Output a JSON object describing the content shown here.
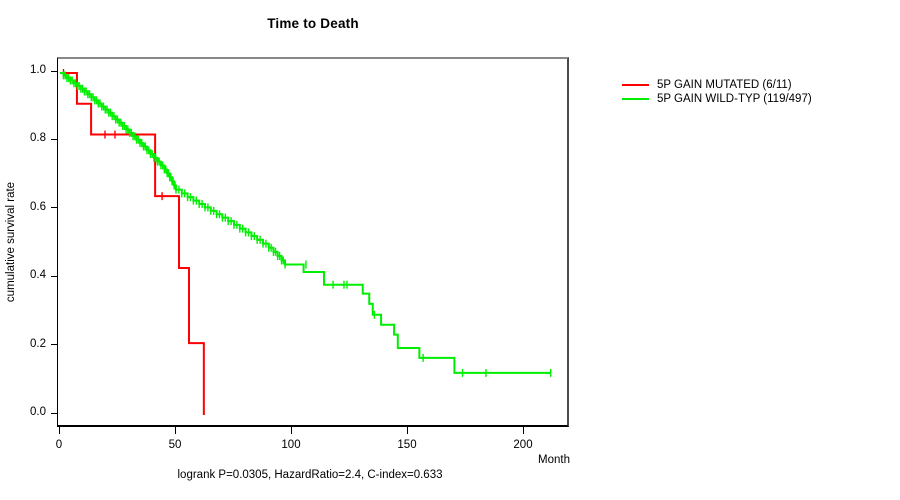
{
  "chart_data": {
    "type": "line",
    "subtype": "kaplan-meier-step",
    "title": "Time to Death",
    "xlabel": "Month",
    "ylabel": "cumulative survival rate",
    "footnote": "logrank P=0.0305, HazardRatio=2.4, C-index=0.633",
    "xlim": [
      0,
      220
    ],
    "ylim": [
      0.0,
      1.0
    ],
    "x_ticks": [
      0,
      50,
      100,
      150,
      200
    ],
    "y_ticks": [
      "1.0",
      "0.8",
      "0.6",
      "0.4",
      "0.2",
      "0.0"
    ],
    "grid": false,
    "legend_position": "right",
    "frame_color_top": "#888888",
    "axis_color": "#000000",
    "series": [
      {
        "name": "5P GAIN MUTATED (6/11)",
        "color": "#ff0000",
        "end_month": 62,
        "steps": [
          [
            0,
            1.0
          ],
          [
            7.3,
            0.91
          ],
          [
            13.4,
            0.82
          ],
          [
            41,
            0.64
          ],
          [
            51.3,
            0.43
          ],
          [
            55.6,
            0.21
          ],
          [
            62,
            0.0
          ]
        ],
        "censor_marks": [
          [
            1.5,
            1.0
          ],
          [
            19.4,
            0.82
          ],
          [
            23.7,
            0.82
          ],
          [
            44,
            0.64
          ]
        ],
        "dense_censor_until": 0
      },
      {
        "name": "5P GAIN WILD-TYP (119/497)",
        "color": "#00ee00",
        "end_month": 211.6,
        "steps": [
          [
            0,
            1.0
          ],
          [
            1.5,
            0.993
          ],
          [
            3,
            0.985
          ],
          [
            4.5,
            0.978
          ],
          [
            6,
            0.97
          ],
          [
            7.5,
            0.962
          ],
          [
            9,
            0.954
          ],
          [
            10.5,
            0.946
          ],
          [
            12,
            0.938
          ],
          [
            13.5,
            0.929
          ],
          [
            15,
            0.92
          ],
          [
            16.5,
            0.911
          ],
          [
            18,
            0.902
          ],
          [
            19.5,
            0.893
          ],
          [
            21,
            0.884
          ],
          [
            22.5,
            0.874
          ],
          [
            24,
            0.864
          ],
          [
            25.5,
            0.855
          ],
          [
            27,
            0.845
          ],
          [
            28.5,
            0.835
          ],
          [
            30,
            0.825
          ],
          [
            31.5,
            0.815
          ],
          [
            33,
            0.805
          ],
          [
            34.5,
            0.795
          ],
          [
            36,
            0.785
          ],
          [
            37.5,
            0.774
          ],
          [
            39,
            0.763
          ],
          [
            40.5,
            0.752
          ],
          [
            42,
            0.741
          ],
          [
            43.5,
            0.73
          ],
          [
            45,
            0.718
          ],
          [
            46.2,
            0.707
          ],
          [
            47.3,
            0.695
          ],
          [
            48.3,
            0.683
          ],
          [
            49.2,
            0.671
          ],
          [
            50,
            0.659
          ],
          [
            52.5,
            0.648
          ],
          [
            55,
            0.637
          ],
          [
            57.5,
            0.627
          ],
          [
            60,
            0.617
          ],
          [
            62.5,
            0.607
          ],
          [
            65,
            0.597
          ],
          [
            67.5,
            0.587
          ],
          [
            70,
            0.577
          ],
          [
            72.5,
            0.567
          ],
          [
            75,
            0.556
          ],
          [
            77.5,
            0.545
          ],
          [
            80,
            0.534
          ],
          [
            82.5,
            0.523
          ],
          [
            85,
            0.512
          ],
          [
            87.5,
            0.501
          ],
          [
            90,
            0.489
          ],
          [
            92,
            0.477
          ],
          [
            93.8,
            0.465
          ],
          [
            95.5,
            0.452
          ],
          [
            97,
            0.44
          ],
          [
            105,
            0.418
          ],
          [
            113.8,
            0.381
          ],
          [
            130.5,
            0.355
          ],
          [
            133.3,
            0.325
          ],
          [
            134.8,
            0.293
          ],
          [
            138.4,
            0.264
          ],
          [
            144,
            0.235
          ],
          [
            145.6,
            0.196
          ],
          [
            154.9,
            0.167
          ],
          [
            170,
            0.123
          ]
        ],
        "censor_marks": [
          [
            106,
            0.44
          ],
          [
            117.7,
            0.381
          ],
          [
            122.4,
            0.381
          ],
          [
            123.7,
            0.381
          ],
          [
            135.5,
            0.293
          ],
          [
            156.5,
            0.167
          ],
          [
            173.5,
            0.123
          ],
          [
            183.6,
            0.123
          ],
          [
            211.5,
            0.123
          ]
        ],
        "dense_censor_until": 100
      }
    ]
  }
}
